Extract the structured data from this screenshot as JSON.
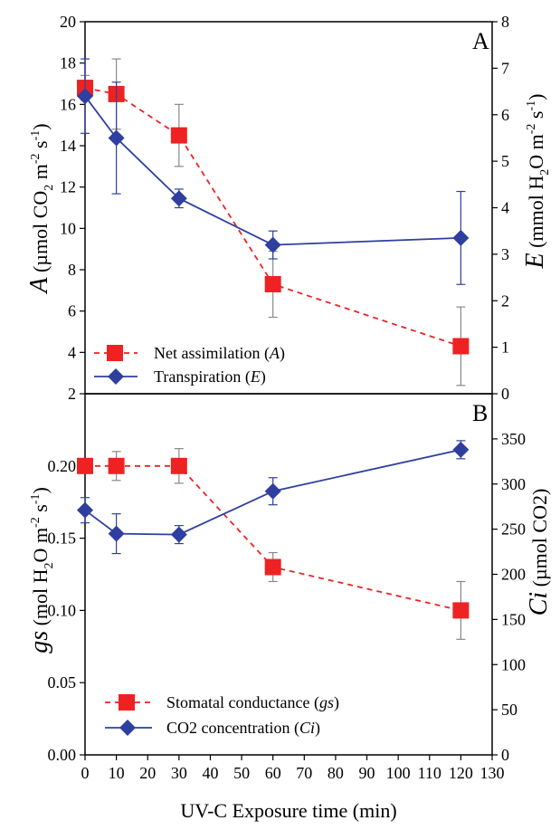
{
  "chart_data": [
    {
      "panel": "A",
      "type": "line",
      "x": [
        0,
        10,
        30,
        60,
        120
      ],
      "xlim": [
        0,
        130
      ],
      "ylabel_left": "A (µmol CO2 m-2 s-1)",
      "ylabel_right": "E (mmol H2O m-2 s-1)",
      "ylim_left": [
        2,
        20
      ],
      "yticks_left": [
        "20",
        "18",
        "16",
        "14",
        "12",
        "10",
        "8",
        "6",
        "4",
        "2"
      ],
      "ylim_right": [
        0,
        8
      ],
      "yticks_right": [
        "8",
        "7",
        "6",
        "5",
        "4",
        "3",
        "2",
        "1",
        "0"
      ],
      "legend_position": "bottom-left",
      "series": [
        {
          "name": "Net assimilation (A)",
          "axis": "left",
          "color": "#ee2222",
          "line_style": "dashed",
          "marker": "square",
          "values": [
            16.8,
            16.5,
            14.5,
            7.3,
            4.3
          ],
          "error": [
            0.6,
            1.7,
            1.5,
            1.6,
            1.9
          ]
        },
        {
          "name": "Transpiration (E)",
          "axis": "right",
          "color": "#2e3fa0",
          "line_style": "solid",
          "marker": "diamond",
          "values": [
            6.4,
            5.5,
            4.2,
            3.2,
            3.35
          ],
          "error": [
            0.8,
            1.2,
            0.2,
            0.3,
            1.0
          ]
        }
      ]
    },
    {
      "panel": "B",
      "type": "line",
      "x": [
        0,
        10,
        30,
        60,
        120
      ],
      "xlim": [
        0,
        130
      ],
      "xticks": [
        "0",
        "10",
        "20",
        "30",
        "40",
        "50",
        "60",
        "70",
        "80",
        "90",
        "100",
        "110",
        "120",
        "130"
      ],
      "xlabel": "UV-C Exposure time (min)",
      "ylabel_left": "gs (mol H2O m-2 s-1)",
      "ylabel_right": "Ci (µmol CO2)",
      "ylim_left": [
        0,
        0.25
      ],
      "yticks_left": [
        "0.00",
        "0.05",
        "0.10",
        "0.15",
        "0.20"
      ],
      "ylim_right": [
        0,
        400
      ],
      "yticks_right": [
        "0",
        "50",
        "100",
        "150",
        "200",
        "250",
        "300",
        "350"
      ],
      "legend_position": "bottom-left",
      "series": [
        {
          "name": "Stomatal conductance (gs)",
          "axis": "left",
          "color": "#ee2222",
          "line_style": "dashed",
          "marker": "square",
          "values": [
            0.2,
            0.2,
            0.2,
            0.13,
            0.1
          ],
          "error": [
            0.0,
            0.01,
            0.012,
            0.01,
            0.02
          ]
        },
        {
          "name": "CO2 concentration (Ci)",
          "axis": "right",
          "color": "#2e3fa0",
          "line_style": "solid",
          "marker": "diamond",
          "values": [
            271,
            245,
            244,
            292,
            338
          ],
          "error": [
            14,
            22,
            10,
            15,
            10
          ]
        }
      ]
    }
  ],
  "panel_a": {
    "letter": "A",
    "ylabel_left_parts": {
      "sym": "A",
      "pre": " (µmol CO",
      "sub": "2",
      "mid": " m",
      "sup1": "-2",
      "mid2": " s",
      "sup2": "-1",
      "post": ")"
    },
    "ylabel_right_parts": {
      "sym": "E",
      "pre": " (mmol H",
      "sub": "2",
      "mid": "O m",
      "sup1": "-2",
      "mid2": " s",
      "sup2": "-1",
      "post": ")"
    },
    "legend": [
      {
        "label": "Net assimilation (",
        "sym": "A",
        "close": ")"
      },
      {
        "label": "Transpiration (",
        "sym": "E",
        "close": ")"
      }
    ]
  },
  "panel_b": {
    "letter": "B",
    "ylabel_left_parts": {
      "sym": "gs",
      "pre": " (mol H",
      "sub": "2",
      "mid": "O m",
      "sup1": "-2",
      "mid2": " s",
      "sup2": "-1",
      "post": ")"
    },
    "ylabel_right_parts": {
      "sym": "Ci",
      "pre": " (µmol CO2)"
    },
    "legend": [
      {
        "label": "Stomatal conductance (",
        "sym": "gs",
        "close": ")"
      },
      {
        "label": "CO2  concentration (",
        "sym": "Ci",
        "close": ")"
      }
    ]
  },
  "x_axis_label": "UV-C Exposure time (min)"
}
